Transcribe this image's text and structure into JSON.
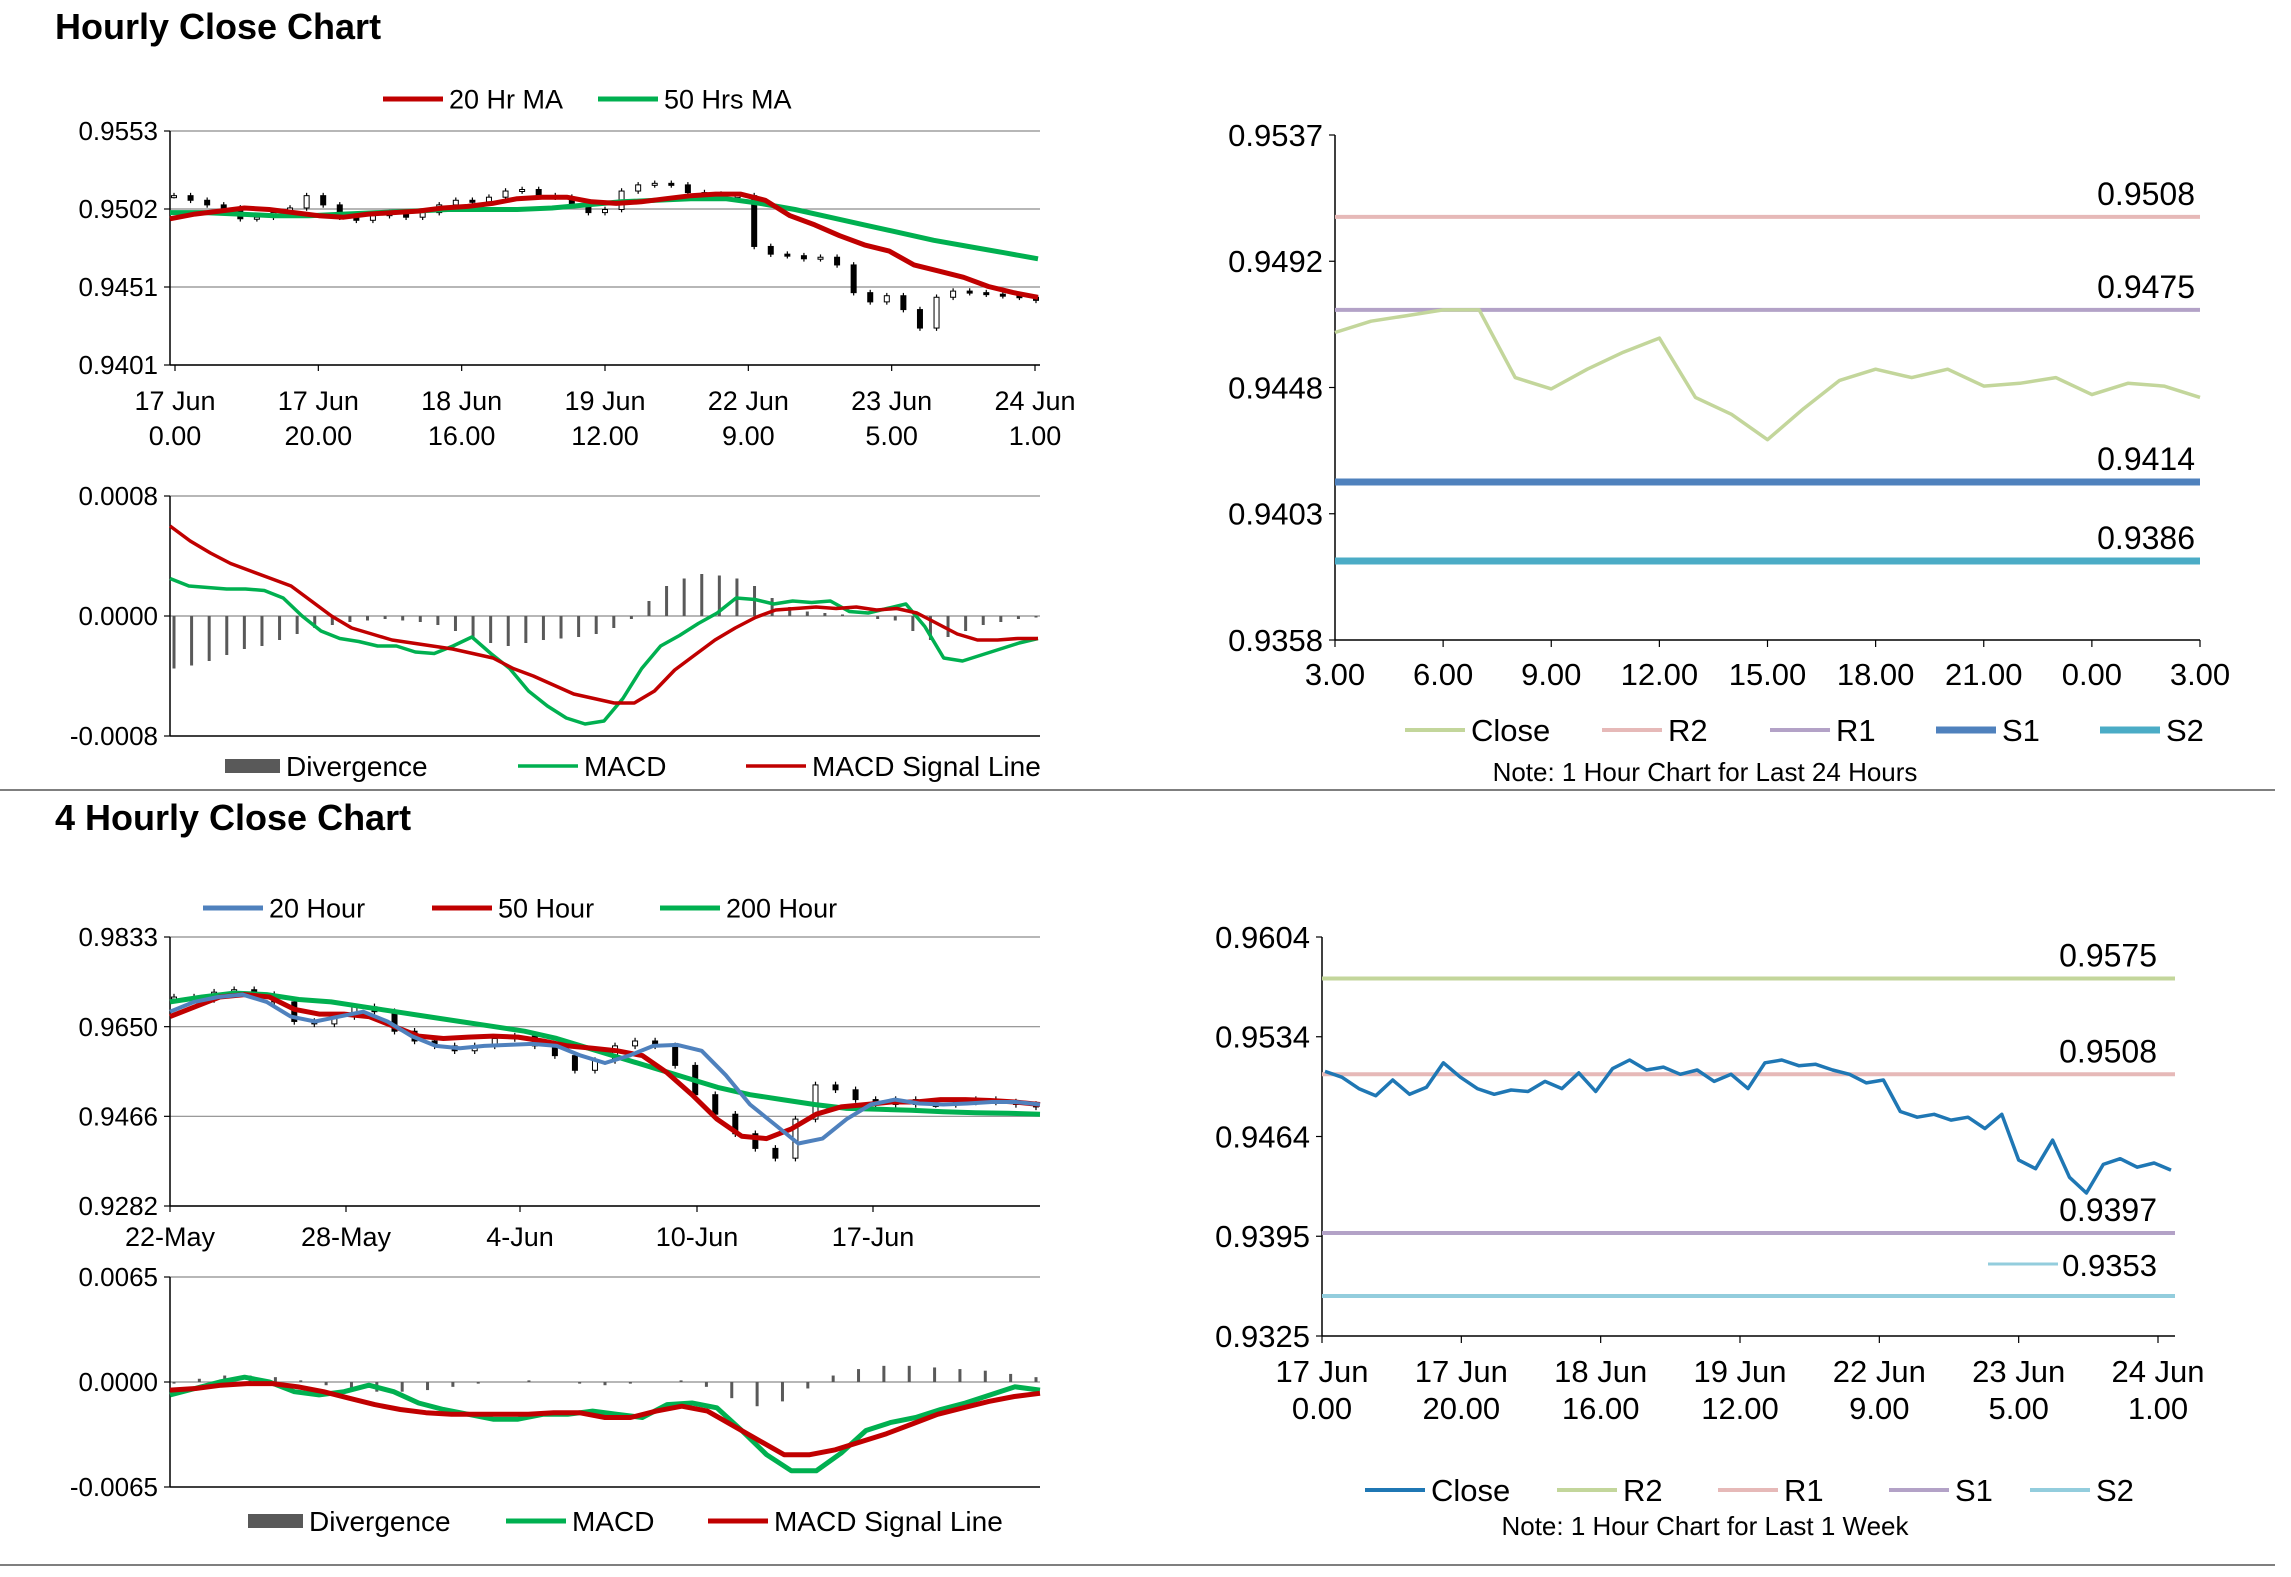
{
  "sections": {
    "hourly_title": "Hourly Close Chart",
    "four_hourly_title": "4 Hourly Close Chart"
  },
  "chart_data": [
    {
      "id": "hourly_price",
      "type": "line",
      "legend": [
        "20 Hr MA",
        "50 Hrs MA"
      ],
      "colors": {
        "ma20": "#c00000",
        "ma50": "#00b050",
        "candle": "#000000"
      },
      "ylim": [
        0.9401,
        0.9553
      ],
      "yticks": [
        "0.9553",
        "0.9502",
        "0.9451",
        "0.9401"
      ],
      "xticks": [
        [
          "17 Jun",
          "0.00"
        ],
        [
          "17 Jun",
          "20.00"
        ],
        [
          "18 Jun",
          "16.00"
        ],
        [
          "19 Jun",
          "12.00"
        ],
        [
          "22 Jun",
          "9.00"
        ],
        [
          "23 Jun",
          "5.00"
        ],
        [
          "24 Jun",
          "1.00"
        ]
      ],
      "close": [
        0.9511,
        0.9508,
        0.9505,
        0.9503,
        0.9496,
        0.9497,
        0.95,
        0.9503,
        0.9511,
        0.9505,
        0.9497,
        0.9495,
        0.9498,
        0.95,
        0.9497,
        0.95,
        0.9505,
        0.9508,
        0.9507,
        0.951,
        0.9514,
        0.9515,
        0.9511,
        0.951,
        0.9505,
        0.95,
        0.9502,
        0.9514,
        0.9518,
        0.9519,
        0.9518,
        0.9513,
        0.9512,
        0.9511,
        0.9511,
        0.9478,
        0.9473,
        0.9472,
        0.947,
        0.9471,
        0.9466,
        0.9448,
        0.9442,
        0.9446,
        0.9437,
        0.9425,
        0.9445,
        0.9449,
        0.9448,
        0.9447,
        0.9446,
        0.9445,
        0.9443
      ],
      "ma20": [
        0.9496,
        0.9499,
        0.9501,
        0.9503,
        0.9502,
        0.95,
        0.9498,
        0.9497,
        0.9499,
        0.95,
        0.9501,
        0.9503,
        0.9504,
        0.9506,
        0.9509,
        0.951,
        0.951,
        0.9507,
        0.9506,
        0.9507,
        0.9509,
        0.9511,
        0.9512,
        0.9512,
        0.9508,
        0.9498,
        0.9492,
        0.9485,
        0.9479,
        0.9475,
        0.9466,
        0.9462,
        0.9458,
        0.9452,
        0.9448,
        0.9445
      ],
      "ma50": [
        0.95,
        0.95,
        0.9499,
        0.9498,
        0.9498,
        0.9499,
        0.95,
        0.9501,
        0.9502,
        0.9502,
        0.9502,
        0.9503,
        0.9505,
        0.9507,
        0.9508,
        0.9509,
        0.9509,
        0.9506,
        0.9502,
        0.9497,
        0.9492,
        0.9487,
        0.9482,
        0.9478,
        0.9474,
        0.947
      ]
    },
    {
      "id": "hourly_macd",
      "type": "line",
      "legend": [
        "Divergence",
        "MACD",
        "MACD Signal Line"
      ],
      "colors": {
        "divergence": "#595959",
        "macd": "#00b050",
        "signal": "#c00000"
      },
      "ylim": [
        -0.0008,
        0.0008
      ],
      "yticks": [
        "0.0008",
        "0.0000",
        "-0.0008"
      ],
      "macd": [
        0.00025,
        0.0002,
        0.00019,
        0.00018,
        0.00018,
        0.00017,
        0.00012,
        0.0,
        -0.0001,
        -0.00015,
        -0.00017,
        -0.0002,
        -0.0002,
        -0.00024,
        -0.00025,
        -0.0002,
        -0.00014,
        -0.00025,
        -0.00035,
        -0.0005,
        -0.0006,
        -0.00068,
        -0.00072,
        -0.0007,
        -0.00055,
        -0.00035,
        -0.0002,
        -0.00013,
        -5e-05,
        2e-05,
        0.00012,
        0.00011,
        8e-05,
        0.0001,
        9e-05,
        0.0001,
        3e-05,
        2e-05,
        5e-05,
        8e-05,
        -7e-05,
        -0.00028,
        -0.0003,
        -0.00026,
        -0.00022,
        -0.00018,
        -0.00015
      ],
      "signal": [
        0.0006,
        0.0005,
        0.00042,
        0.00035,
        0.0003,
        0.00025,
        0.0002,
        0.0001,
        0.0,
        -8e-05,
        -0.00012,
        -0.00016,
        -0.00018,
        -0.0002,
        -0.00022,
        -0.00025,
        -0.00028,
        -0.00035,
        -0.0004,
        -0.00046,
        -0.00052,
        -0.00055,
        -0.00058,
        -0.00058,
        -0.0005,
        -0.00036,
        -0.00026,
        -0.00016,
        -8e-05,
        -1e-05,
        4e-05,
        5e-05,
        6e-05,
        5e-05,
        6e-05,
        4e-05,
        5e-05,
        2e-05,
        -5e-05,
        -0.00012,
        -0.00016,
        -0.00016,
        -0.00015,
        -0.00015
      ],
      "divergence": [
        -0.00035,
        -0.00033,
        -0.0003,
        -0.00026,
        -0.00022,
        -0.0002,
        -0.00016,
        -0.00012,
        -8e-05,
        -6e-05,
        -4e-05,
        -3e-05,
        -2e-05,
        -3e-05,
        -4e-05,
        -6e-05,
        -0.0001,
        -0.00015,
        -0.00018,
        -0.0002,
        -0.00018,
        -0.00016,
        -0.00015,
        -0.00014,
        -0.00012,
        -8e-05,
        -2e-05,
        0.0001,
        0.0002,
        0.00025,
        0.00028,
        0.00027,
        0.00025,
        0.0002,
        0.00012,
        6e-05,
        3e-05,
        2e-05,
        1e-05,
        0.0,
        -2e-05,
        -3e-05,
        -0.0001,
        -0.00016,
        -0.00014,
        -0.0001,
        -6e-05,
        -4e-05,
        -2e-05,
        -1e-05
      ]
    },
    {
      "id": "hourly_24h",
      "type": "line",
      "note": "Note: 1 Hour Chart for Last 24 Hours",
      "legend": [
        "Close",
        "R2",
        "R1",
        "S1",
        "S2"
      ],
      "colors": {
        "close": "#c3d69b",
        "r2": "#e6b9b8",
        "r1": "#b3a2c7",
        "s1": "#4f81bd",
        "s2": "#4bacc6"
      },
      "ylim": [
        0.9358,
        0.9537
      ],
      "yticks": [
        "0.9537",
        "0.9492",
        "0.9448",
        "0.9403",
        "0.9358"
      ],
      "xticks": [
        "3.00",
        "6.00",
        "9.00",
        "12.00",
        "15.00",
        "18.00",
        "21.00",
        "0.00",
        "3.00"
      ],
      "close": [
        0.9467,
        0.9471,
        0.9473,
        0.9475,
        0.9475,
        0.9451,
        0.9447,
        0.9454,
        0.946,
        0.9465,
        0.9444,
        0.9438,
        0.9429,
        0.944,
        0.945,
        0.9454,
        0.9451,
        0.9454,
        0.9448,
        0.9449,
        0.9451,
        0.9445,
        0.9449,
        0.9448,
        0.9444
      ],
      "levels": {
        "R2": "0.9508",
        "R1": "0.9475",
        "S1": "0.9414",
        "S2": "0.9386"
      }
    },
    {
      "id": "four_hourly_price",
      "type": "line",
      "legend": [
        "20 Hour",
        "50 Hour",
        "200 Hour"
      ],
      "colors": {
        "ma20": "#4f81bd",
        "ma50": "#c00000",
        "ma200": "#00b050",
        "candle": "#000000"
      },
      "ylim": [
        0.9282,
        0.9833
      ],
      "yticks": [
        "0.9833",
        "0.9650",
        "0.9466",
        "0.9282"
      ],
      "xticks": [
        "22-May",
        "28-May",
        "4-Jun",
        "10-Jun",
        "17-Jun"
      ],
      "close": [
        0.971,
        0.9705,
        0.972,
        0.9725,
        0.9715,
        0.97,
        0.966,
        0.9655,
        0.967,
        0.969,
        0.968,
        0.964,
        0.962,
        0.961,
        0.96,
        0.961,
        0.9625,
        0.963,
        0.961,
        0.959,
        0.956,
        0.958,
        0.961,
        0.962,
        0.961,
        0.957,
        0.951,
        0.947,
        0.943,
        0.94,
        0.938,
        0.946,
        0.953,
        0.952,
        0.95,
        0.949,
        0.95,
        0.949,
        0.949,
        0.9495,
        0.95,
        0.9495,
        0.949,
        0.9485
      ],
      "ma20": [
        0.968,
        0.97,
        0.971,
        0.9715,
        0.97,
        0.967,
        0.966,
        0.967,
        0.968,
        0.966,
        0.963,
        0.961,
        0.9605,
        0.961,
        0.9612,
        0.9614,
        0.961,
        0.959,
        0.9575,
        0.959,
        0.961,
        0.9612,
        0.96,
        0.955,
        0.949,
        0.945,
        0.941,
        0.942,
        0.946,
        0.949,
        0.95,
        0.9492,
        0.949,
        0.9492,
        0.9495,
        0.9495,
        0.949
      ],
      "ma50": [
        0.967,
        0.969,
        0.971,
        0.9715,
        0.971,
        0.9685,
        0.9675,
        0.9675,
        0.967,
        0.965,
        0.963,
        0.9625,
        0.9628,
        0.963,
        0.9628,
        0.962,
        0.961,
        0.9605,
        0.96,
        0.959,
        0.9555,
        0.951,
        0.946,
        0.9425,
        0.942,
        0.944,
        0.947,
        0.9485,
        0.949,
        0.9495,
        0.9495,
        0.95,
        0.95,
        0.9498,
        0.9495,
        0.949
      ],
      "ma200": [
        0.97,
        0.971,
        0.9718,
        0.9715,
        0.9705,
        0.97,
        0.969,
        0.968,
        0.967,
        0.966,
        0.965,
        0.964,
        0.9625,
        0.9605,
        0.9585,
        0.9565,
        0.9545,
        0.9525,
        0.951,
        0.95,
        0.949,
        0.9482,
        0.948,
        0.9478,
        0.9475,
        0.9473,
        0.9472,
        0.947
      ]
    },
    {
      "id": "four_hourly_macd",
      "type": "line",
      "legend": [
        "Divergence",
        "MACD",
        "MACD Signal Line"
      ],
      "colors": {
        "divergence": "#595959",
        "macd": "#00b050",
        "signal": "#c00000"
      },
      "ylim": [
        -0.0065,
        0.0065
      ],
      "yticks": [
        "0.0065",
        "0.0000",
        "-0.0065"
      ],
      "macd": [
        -0.0008,
        -0.0004,
        0.0,
        0.0003,
        0.0,
        -0.0006,
        -0.0008,
        -0.0006,
        -0.0002,
        -0.0006,
        -0.0013,
        -0.0017,
        -0.002,
        -0.0023,
        -0.0023,
        -0.002,
        -0.002,
        -0.0018,
        -0.002,
        -0.0022,
        -0.0014,
        -0.0013,
        -0.0016,
        -0.003,
        -0.0045,
        -0.0055,
        -0.0055,
        -0.0044,
        -0.003,
        -0.0025,
        -0.0022,
        -0.0017,
        -0.0013,
        -0.0008,
        -0.0003,
        -0.0005
      ],
      "signal": [
        -0.0005,
        -0.0004,
        -0.0002,
        -0.0001,
        -0.0001,
        -0.0003,
        -0.0006,
        -0.001,
        -0.0014,
        -0.0017,
        -0.0019,
        -0.002,
        -0.002,
        -0.002,
        -0.002,
        -0.0019,
        -0.0019,
        -0.0022,
        -0.0022,
        -0.0018,
        -0.0015,
        -0.0018,
        -0.0027,
        -0.0036,
        -0.0045,
        -0.0045,
        -0.0042,
        -0.0037,
        -0.0032,
        -0.0026,
        -0.002,
        -0.0016,
        -0.0012,
        -0.0009,
        -0.0007
      ],
      "divergence": [
        -0.0001,
        0.0002,
        0.0004,
        0.0004,
        0.0003,
        0.0001,
        -0.0002,
        -0.0005,
        -0.0006,
        -0.0006,
        -0.0005,
        -0.0003,
        -0.0001,
        0.0,
        0.0001,
        0.0,
        -0.0001,
        -0.0002,
        -0.0001,
        0.0,
        0.0001,
        -0.0003,
        -0.001,
        -0.0015,
        -0.0012,
        -0.0004,
        0.0004,
        0.0008,
        0.001,
        0.001,
        0.0009,
        0.0008,
        0.0007,
        0.0005,
        0.0003
      ]
    },
    {
      "id": "week_hourly",
      "type": "line",
      "note": "Note: 1 Hour Chart for Last 1 Week",
      "legend": [
        "Close",
        "R2",
        "R1",
        "S1",
        "S2"
      ],
      "colors": {
        "close": "#1f77b4",
        "r2": "#c3d69b",
        "r1": "#e6b9b8",
        "s1": "#b3a2c7",
        "s2": "#93cddd"
      },
      "ylim": [
        0.9325,
        0.9604
      ],
      "yticks": [
        "0.9604",
        "0.9534",
        "0.9464",
        "0.9395",
        "0.9325"
      ],
      "xticks": [
        [
          "17 Jun",
          "0.00"
        ],
        [
          "17 Jun",
          "20.00"
        ],
        [
          "18 Jun",
          "16.00"
        ],
        [
          "19 Jun",
          "12.00"
        ],
        [
          "22 Jun",
          "9.00"
        ],
        [
          "23 Jun",
          "5.00"
        ],
        [
          "24 Jun",
          "1.00"
        ]
      ],
      "close": [
        0.951,
        0.9506,
        0.9498,
        0.9493,
        0.9504,
        0.9494,
        0.9499,
        0.9516,
        0.9506,
        0.9498,
        0.9494,
        0.9497,
        0.9496,
        0.9503,
        0.9498,
        0.9509,
        0.9496,
        0.9512,
        0.9518,
        0.9511,
        0.9513,
        0.9508,
        0.9511,
        0.9503,
        0.9508,
        0.9498,
        0.9516,
        0.9518,
        0.9514,
        0.9515,
        0.9511,
        0.9508,
        0.9502,
        0.9504,
        0.9482,
        0.9478,
        0.948,
        0.9476,
        0.9478,
        0.947,
        0.948,
        0.9448,
        0.9442,
        0.9462,
        0.9436,
        0.9425,
        0.9445,
        0.9449,
        0.9443,
        0.9446,
        0.9441
      ],
      "levels": {
        "R2": "0.9575",
        "R1": "0.9508",
        "S1": "0.9397",
        "S2": "0.9353"
      }
    }
  ]
}
